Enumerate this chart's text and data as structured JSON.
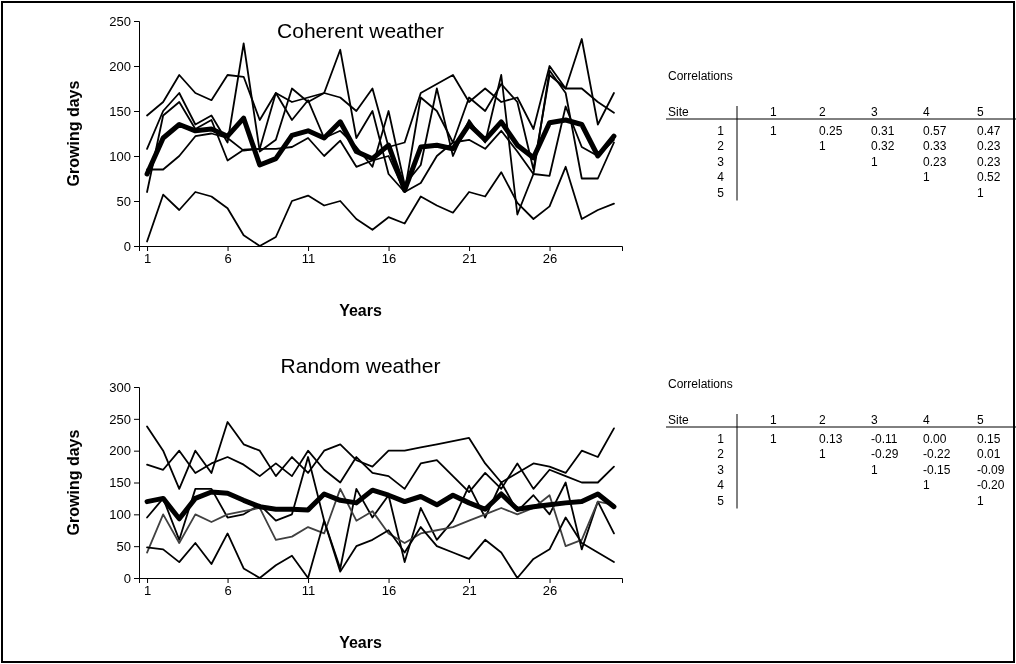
{
  "chart_data": [
    {
      "type": "line",
      "title": "Coherent weather",
      "xlabel": "Years",
      "ylabel": "Growing days",
      "x": [
        1,
        2,
        3,
        4,
        5,
        6,
        7,
        8,
        9,
        10,
        11,
        12,
        13,
        14,
        15,
        16,
        17,
        18,
        19,
        20,
        21,
        22,
        23,
        24,
        25,
        26,
        27,
        28,
        29,
        30
      ],
      "xlim": [
        0.5,
        30.5
      ],
      "xticks": [
        1,
        6,
        11,
        16,
        21,
        26
      ],
      "ylim": [
        0,
        250
      ],
      "yticks": [
        0,
        50,
        100,
        150,
        200,
        250
      ],
      "grid": false,
      "marker": "none",
      "line_style": "solid",
      "series": [
        {
          "color": "#000000",
          "values": [
            145,
            160,
            190,
            170,
            162,
            190,
            188,
            140,
            170,
            160,
            165,
            170,
            165,
            150,
            175,
            110,
            115,
            170,
            180,
            190,
            160,
            175,
            160,
            165,
            130,
            200,
            175,
            175,
            160,
            148
          ]
        },
        {
          "color": "#000000",
          "values": [
            108,
            150,
            170,
            135,
            145,
            115,
            225,
            105,
            118,
            175,
            160,
            170,
            218,
            120,
            150,
            80,
            60,
            165,
            150,
            115,
            165,
            150,
            180,
            160,
            85,
            190,
            175,
            230,
            135,
            170
          ]
        },
        {
          "color": "#000000",
          "values": [
            60,
            145,
            160,
            130,
            140,
            95,
            107,
            108,
            170,
            140,
            162,
            120,
            128,
            110,
            88,
            150,
            68,
            90,
            175,
            100,
            140,
            115,
            190,
            35,
            80,
            195,
            170,
            75,
            75,
            115
          ]
        },
        {
          "color": "#000000",
          "values": [
            85,
            85,
            100,
            122,
            125,
            120,
            106,
            108,
            108,
            110,
            120,
            100,
            117,
            88,
            95,
            100,
            60,
            70,
            100,
            115,
            118,
            108,
            128,
            105,
            80,
            78,
            155,
            110,
            100,
            118
          ]
        },
        {
          "color": "#000000",
          "values": [
            5,
            57,
            40,
            60,
            55,
            42,
            12,
            0,
            10,
            50,
            56,
            45,
            50,
            30,
            18,
            32,
            25,
            55,
            45,
            37,
            60,
            55,
            82,
            48,
            30,
            44,
            88,
            30,
            40,
            47
          ]
        },
        {
          "color": "#000000",
          "values": [
            80,
            120,
            135,
            128,
            130,
            122,
            142,
            90,
            97,
            123,
            128,
            120,
            138,
            105,
            97,
            112,
            62,
            110,
            112,
            108,
            135,
            118,
            138,
            112,
            98,
            137,
            140,
            135,
            100,
            122
          ]
        }
      ]
    },
    {
      "type": "heatmap",
      "title": "Correlations",
      "xlabel": "Site",
      "categories": [
        "1",
        "2",
        "3",
        "4",
        "5"
      ],
      "y_categories": [
        "1",
        "2",
        "3",
        "4",
        "5"
      ],
      "cells": [
        [
          1,
          0.25,
          0.31,
          0.57,
          0.47
        ],
        [
          null,
          1,
          0.32,
          0.33,
          0.23
        ],
        [
          null,
          null,
          1,
          0.23,
          0.23
        ],
        [
          null,
          null,
          null,
          1,
          0.52
        ],
        [
          null,
          null,
          null,
          null,
          1
        ]
      ],
      "data_labels": true
    },
    {
      "type": "line",
      "title": "Random  weather",
      "xlabel": "Years",
      "ylabel": "Growing days",
      "x": [
        1,
        2,
        3,
        4,
        5,
        6,
        7,
        8,
        9,
        10,
        11,
        12,
        13,
        14,
        15,
        16,
        17,
        18,
        19,
        20,
        21,
        22,
        23,
        24,
        25,
        26,
        27,
        28,
        29,
        30
      ],
      "xlim": [
        0.5,
        30.5
      ],
      "xticks": [
        1,
        6,
        11,
        16,
        21,
        26
      ],
      "ylim": [
        0,
        300
      ],
      "yticks": [
        0,
        50,
        100,
        150,
        200,
        250,
        300
      ],
      "grid": false,
      "marker": "none",
      "line_style": "solid",
      "series": [
        {
          "color": "#000000",
          "values": [
            238,
            200,
            140,
            200,
            165,
            245,
            210,
            200,
            160,
            190,
            165,
            200,
            210,
            185,
            175,
            200,
            200,
            205,
            210,
            215,
            220,
            180,
            150,
            165,
            180,
            175,
            165,
            200,
            190,
            235
          ]
        },
        {
          "color": "#000000",
          "values": [
            178,
            170,
            200,
            165,
            180,
            190,
            178,
            160,
            180,
            160,
            200,
            170,
            150,
            190,
            165,
            160,
            140,
            180,
            185,
            160,
            135,
            165,
            140,
            180,
            140,
            170,
            160,
            150,
            150,
            175
          ]
        },
        {
          "color": "#000000",
          "values": [
            95,
            125,
            60,
            140,
            140,
            95,
            100,
            115,
            90,
            100,
            190,
            90,
            15,
            140,
            95,
            130,
            25,
            110,
            60,
            90,
            145,
            95,
            150,
            105,
            130,
            100,
            150,
            45,
            120,
            70
          ]
        },
        {
          "color": "#404040",
          "values": [
            40,
            100,
            55,
            100,
            88,
            100,
            105,
            110,
            60,
            65,
            80,
            70,
            140,
            90,
            105,
            70,
            55,
            70,
            75,
            80,
            90,
            100,
            110,
            100,
            110,
            130,
            50,
            60,
            120,
            115
          ]
        },
        {
          "color": "#000000",
          "values": [
            48,
            45,
            25,
            55,
            22,
            70,
            15,
            0,
            20,
            35,
            0,
            90,
            10,
            50,
            60,
            75,
            40,
            80,
            50,
            40,
            30,
            60,
            40,
            0,
            30,
            45,
            95,
            55,
            40,
            25
          ]
        },
        {
          "color": "#000000",
          "values": [
            120,
            125,
            93,
            125,
            135,
            133,
            122,
            112,
            108,
            108,
            107,
            132,
            122,
            118,
            138,
            130,
            120,
            128,
            115,
            130,
            118,
            108,
            132,
            108,
            112,
            115,
            118,
            120,
            132,
            112
          ]
        }
      ]
    },
    {
      "type": "heatmap",
      "title": "Correlations",
      "xlabel": "Site",
      "categories": [
        "1",
        "2",
        "3",
        "4",
        "5"
      ],
      "y_categories": [
        "1",
        "2",
        "3",
        "4",
        "5"
      ],
      "cells": [
        [
          1,
          0.13,
          -0.11,
          0.0,
          0.15
        ],
        [
          null,
          1,
          -0.29,
          -0.22,
          0.01
        ],
        [
          null,
          null,
          1,
          -0.15,
          -0.09
        ],
        [
          null,
          null,
          null,
          1,
          -0.2
        ],
        [
          null,
          null,
          null,
          null,
          1
        ]
      ],
      "data_labels": true,
      "cell_labels": [
        [
          "1",
          "0.13",
          "-0.11",
          "0.00",
          "0.15"
        ],
        [
          null,
          "1",
          "-0.29",
          "-0.22",
          "0.01"
        ],
        [
          null,
          null,
          "1",
          "-0.15",
          "-0.09"
        ],
        [
          null,
          null,
          null,
          "1",
          "-0.20"
        ],
        [
          null,
          null,
          null,
          null,
          "1"
        ]
      ]
    }
  ]
}
